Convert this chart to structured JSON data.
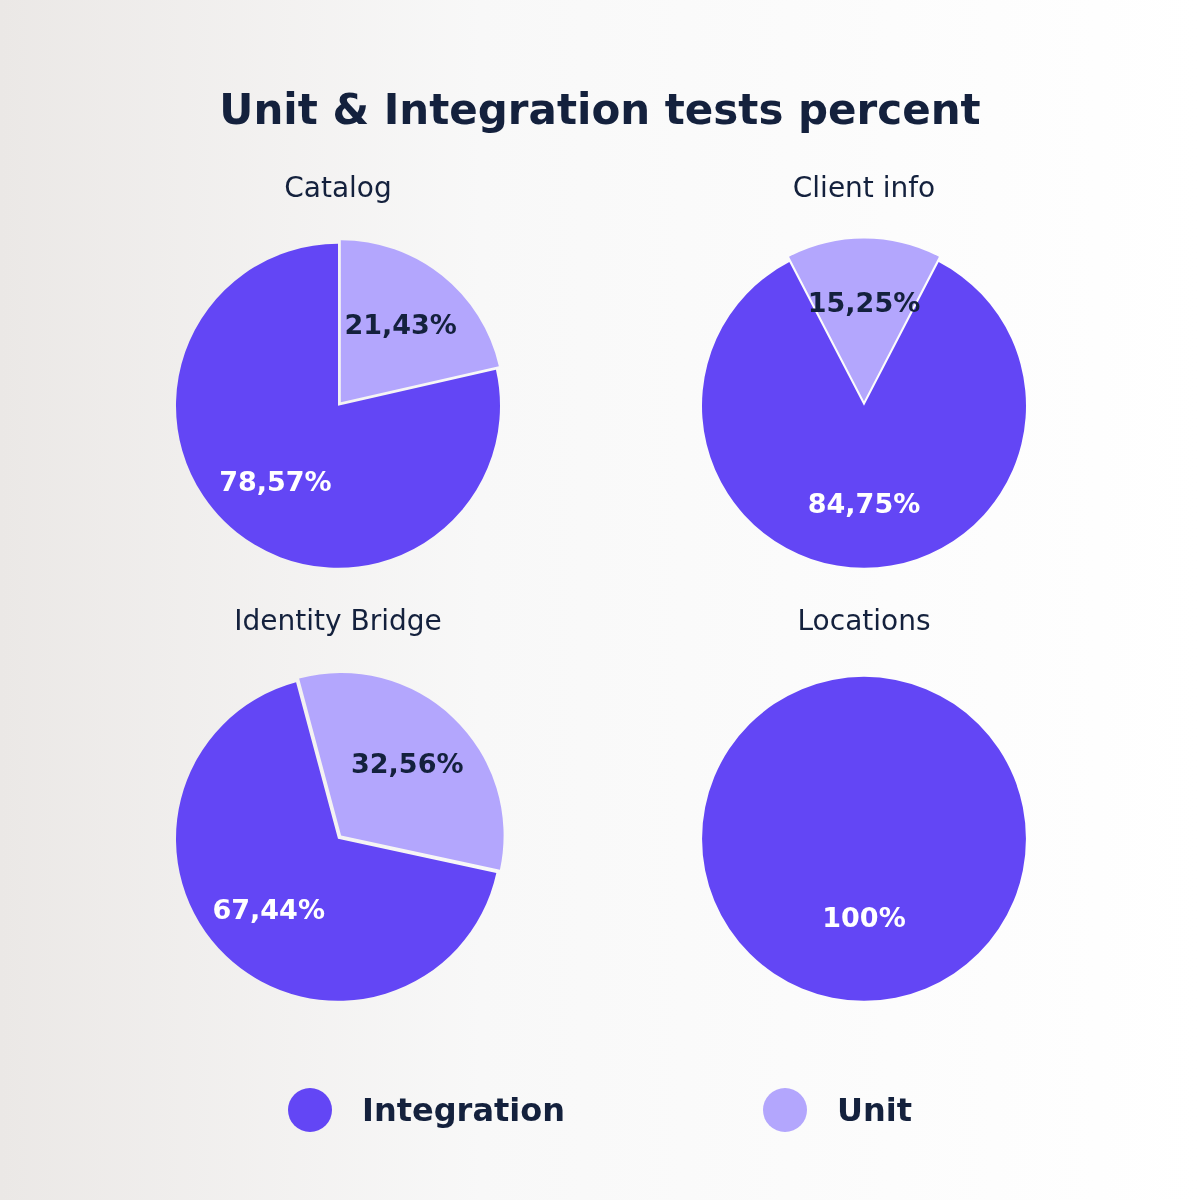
{
  "chart_data": [
    {
      "type": "other",
      "title": "Unit & Integration tests percent"
    },
    {
      "type": "pie",
      "title": "Catalog",
      "categories": [
        "Integration",
        "Unit"
      ],
      "values": [
        78.57,
        21.43
      ],
      "value_labels": [
        "78,57%",
        "21,43%"
      ],
      "colors": [
        "#6346f5",
        "#b3a6fd"
      ],
      "legend": "bottom"
    },
    {
      "type": "pie",
      "title": "Client info",
      "categories": [
        null,
        null
      ],
      "values": [
        84.75,
        15.25
      ],
      "value_labels": [
        "84,75%",
        "15,25%"
      ],
      "colors": [
        "#6346f5",
        "#b3a6fd"
      ]
    },
    {
      "type": "pie",
      "title": "Identity Bridge",
      "categories": [
        null,
        null
      ],
      "values": [
        67.44,
        32.56
      ],
      "value_labels": [
        "67,44%",
        "32,56%"
      ],
      "colors": [
        "#6346f5",
        "#b3a6fd"
      ]
    },
    {
      "type": "pie",
      "title": "Locations",
      "categories": [
        null,
        null
      ],
      "values": [
        100,
        0
      ],
      "value_labels": [
        "100%",
        null
      ],
      "colors": [
        "#6346f5",
        "#b3a6fd"
      ]
    }
  ]
}
